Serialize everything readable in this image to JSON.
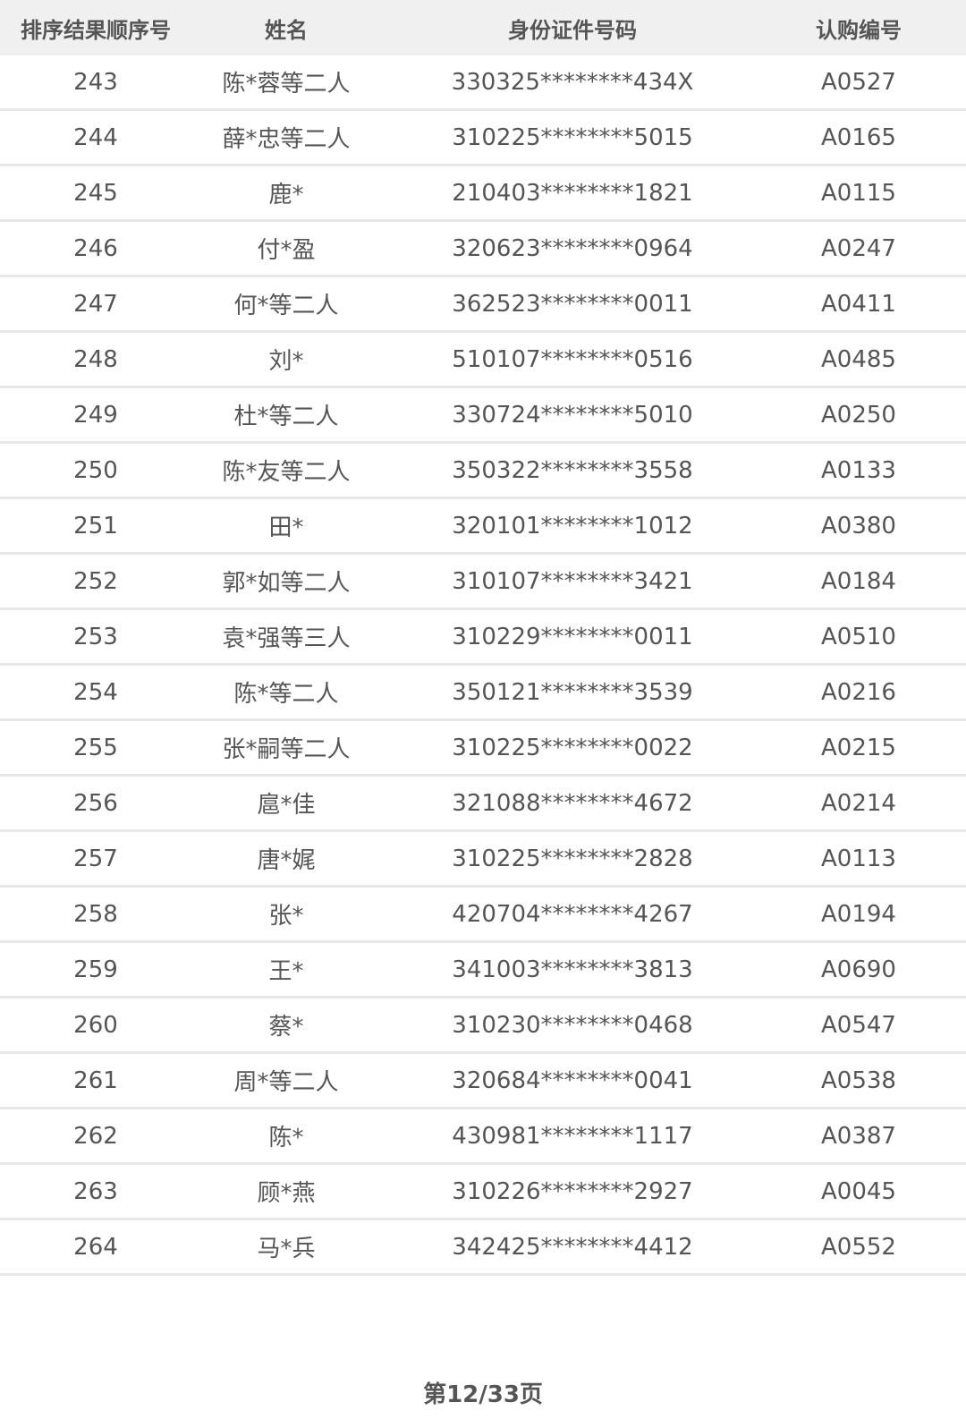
{
  "table": {
    "headers": [
      "排序结果顺序号",
      "姓名",
      "身份证件号码",
      "认购编号"
    ],
    "rows": [
      [
        "243",
        "陈*蓉等二人",
        "330325********434X",
        "A0527"
      ],
      [
        "244",
        "薛*忠等二人",
        "310225********5015",
        "A0165"
      ],
      [
        "245",
        "鹿*",
        "210403********1821",
        "A0115"
      ],
      [
        "246",
        "付*盈",
        "320623********0964",
        "A0247"
      ],
      [
        "247",
        "何*等二人",
        "362523********0011",
        "A0411"
      ],
      [
        "248",
        "刘*",
        "510107********0516",
        "A0485"
      ],
      [
        "249",
        "杜*等二人",
        "330724********5010",
        "A0250"
      ],
      [
        "250",
        "陈*友等二人",
        "350322********3558",
        "A0133"
      ],
      [
        "251",
        "田*",
        "320101********1012",
        "A0380"
      ],
      [
        "252",
        "郭*如等二人",
        "310107********3421",
        "A0184"
      ],
      [
        "253",
        "袁*强等三人",
        "310229********0011",
        "A0510"
      ],
      [
        "254",
        "陈*等二人",
        "350121********3539",
        "A0216"
      ],
      [
        "255",
        "张*嗣等二人",
        "310225********0022",
        "A0215"
      ],
      [
        "256",
        "扈*佳",
        "321088********4672",
        "A0214"
      ],
      [
        "257",
        "唐*娓",
        "310225********2828",
        "A0113"
      ],
      [
        "258",
        "张*",
        "420704********4267",
        "A0194"
      ],
      [
        "259",
        "王*",
        "341003********3813",
        "A0690"
      ],
      [
        "260",
        "蔡*",
        "310230********0468",
        "A0547"
      ],
      [
        "261",
        "周*等二人",
        "320684********0041",
        "A0538"
      ],
      [
        "262",
        "陈*",
        "430981********1117",
        "A0387"
      ],
      [
        "263",
        "顾*燕",
        "310226********2927",
        "A0045"
      ],
      [
        "264",
        "马*兵",
        "342425********4412",
        "A0552"
      ]
    ]
  },
  "footer": {
    "page_label": "第12/33页"
  }
}
